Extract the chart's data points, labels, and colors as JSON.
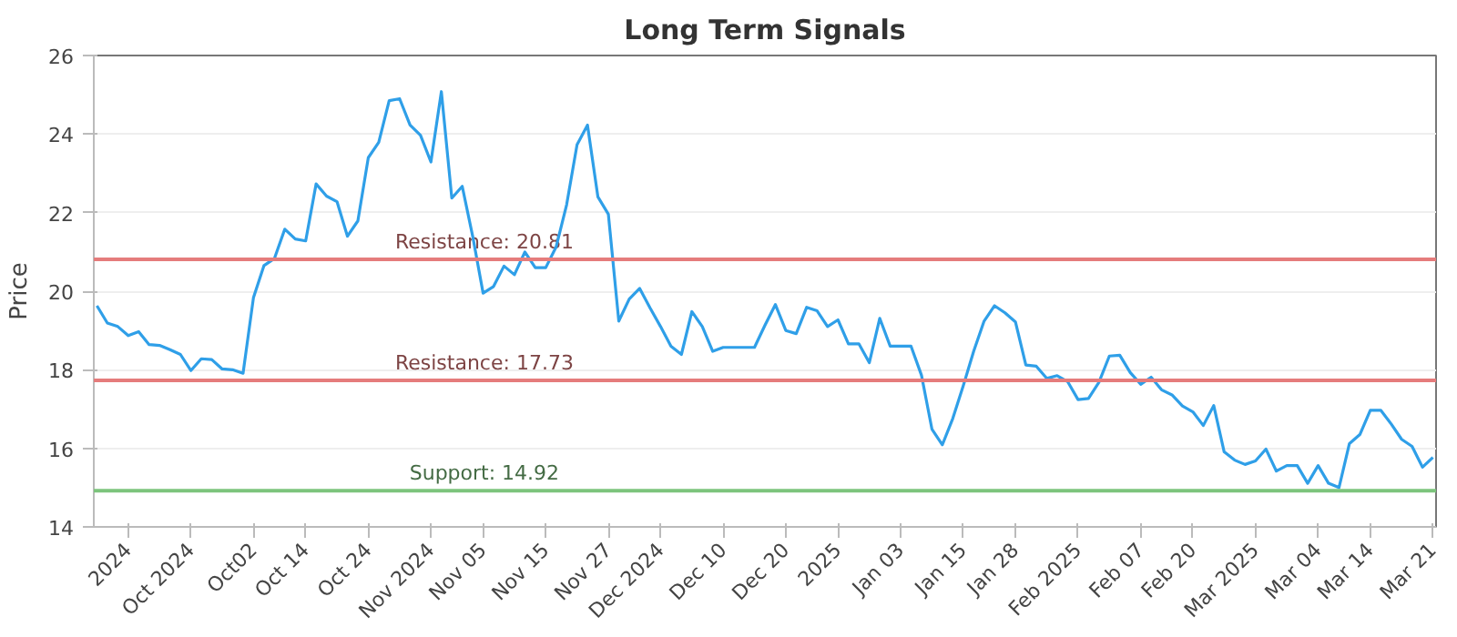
{
  "chart_data": {
    "type": "line",
    "title": "Long Term Signals",
    "ylabel": "Price",
    "categories": [
      null,
      null,
      null,
      "2024",
      null,
      null,
      null,
      null,
      null,
      "Oct 2024",
      null,
      null,
      null,
      null,
      null,
      "Oct02",
      null,
      null,
      null,
      null,
      "Oct 14",
      null,
      null,
      null,
      null,
      null,
      "Oct 24",
      null,
      null,
      null,
      null,
      null,
      "Nov 2024",
      null,
      null,
      null,
      null,
      "Nov 05",
      null,
      null,
      null,
      null,
      null,
      "Nov 15",
      null,
      null,
      null,
      null,
      null,
      "Nov 27",
      null,
      null,
      null,
      null,
      "Dec 2024",
      null,
      null,
      null,
      null,
      null,
      "Dec 10",
      null,
      null,
      null,
      null,
      null,
      "Dec 20",
      null,
      null,
      null,
      null,
      "2025",
      null,
      null,
      null,
      null,
      null,
      "Jan 03",
      null,
      null,
      null,
      null,
      null,
      "Jan 15",
      null,
      null,
      null,
      null,
      "Jan 28",
      null,
      null,
      null,
      null,
      null,
      "Feb 2025",
      null,
      null,
      null,
      null,
      null,
      "Feb 07",
      null,
      null,
      null,
      null,
      "Feb 20",
      null,
      null,
      null,
      null,
      null,
      "Mar 2025",
      null,
      null,
      null,
      null,
      null,
      "Mar 04",
      null,
      null,
      null,
      null,
      "Mar 14",
      null,
      null,
      null,
      null,
      null,
      "Mar 21"
    ],
    "series": [
      {
        "color": "#2f9fe8",
        "values": [
          19.63,
          19.19,
          19.1,
          18.87,
          18.97,
          18.64,
          18.62,
          18.51,
          18.39,
          17.98,
          18.28,
          18.26,
          18.02,
          18.0,
          17.91,
          19.84,
          20.65,
          20.83,
          21.58,
          21.33,
          21.28,
          22.73,
          22.42,
          22.28,
          21.4,
          21.79,
          23.4,
          23.79,
          24.85,
          24.9,
          24.23,
          23.97,
          23.29,
          25.08,
          22.37,
          22.67,
          21.4,
          19.95,
          20.12,
          20.64,
          20.42,
          21.0,
          20.6,
          20.6,
          21.13,
          22.2,
          23.73,
          24.23,
          22.4,
          21.96,
          19.24,
          19.8,
          20.07,
          19.57,
          19.1,
          18.6,
          18.39,
          19.48,
          19.1,
          18.47,
          18.57,
          18.57,
          18.57,
          18.57,
          19.13,
          19.66,
          19.0,
          18.92,
          19.59,
          19.5,
          19.1,
          19.27,
          18.66,
          18.66,
          18.18,
          19.31,
          18.6,
          18.6,
          18.6,
          17.86,
          16.49,
          16.09,
          16.76,
          17.59,
          18.47,
          19.24,
          19.63,
          19.45,
          19.22,
          18.12,
          18.09,
          17.78,
          17.85,
          17.7,
          17.24,
          17.27,
          17.68,
          18.35,
          18.37,
          17.93,
          17.63,
          17.81,
          17.49,
          17.36,
          17.08,
          16.93,
          16.58,
          17.09,
          15.91,
          15.7,
          15.59,
          15.68,
          15.98,
          15.42,
          15.56,
          15.56,
          15.11,
          15.56,
          15.11,
          15.0,
          16.12,
          16.35,
          16.97,
          16.97,
          16.62,
          16.23,
          16.05,
          15.52,
          15.77
        ]
      }
    ],
    "ylim": [
      14,
      26
    ],
    "yticks": [
      14,
      16,
      18,
      20,
      22,
      24,
      26
    ],
    "grid": "y",
    "ref_lines": [
      {
        "axis": "y",
        "value": 20.81,
        "label": "Resistance: 20.81",
        "color": "#e57c7c"
      },
      {
        "axis": "y",
        "value": 17.73,
        "label": "Resistance: 17.73",
        "color": "#e57c7c"
      },
      {
        "axis": "y",
        "value": 14.92,
        "label": "Support: 14.92",
        "color": "#7cc47c"
      }
    ]
  }
}
